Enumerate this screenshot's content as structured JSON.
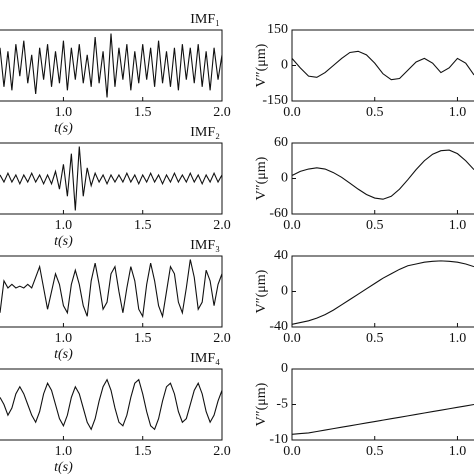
{
  "chart_data": [
    {
      "type": "line",
      "title": "IMF₁",
      "xlabel": "t(s)",
      "color": "#111",
      "x": [
        0.6,
        0.625,
        0.65,
        0.675,
        0.7,
        0.725,
        0.75,
        0.775,
        0.8,
        0.825,
        0.85,
        0.875,
        0.9,
        0.925,
        0.95,
        0.975,
        1.0,
        1.025,
        1.05,
        1.075,
        1.1,
        1.125,
        1.15,
        1.175,
        1.2,
        1.225,
        1.25,
        1.275,
        1.3,
        1.325,
        1.35,
        1.375,
        1.4,
        1.425,
        1.45,
        1.475,
        1.5,
        1.525,
        1.55,
        1.575,
        1.6,
        1.625,
        1.65,
        1.675,
        1.7,
        1.725,
        1.75,
        1.775,
        1.8,
        1.825,
        1.85,
        1.875,
        1.9,
        1.925,
        1.95,
        1.975,
        2.0
      ],
      "values": [
        0.5,
        -0.6,
        0.4,
        -0.7,
        0.6,
        -0.3,
        0.7,
        -0.5,
        0.3,
        -0.8,
        0.5,
        -0.4,
        0.6,
        -0.6,
        0.4,
        -0.5,
        0.7,
        -0.7,
        0.5,
        -0.4,
        0.6,
        -0.5,
        0.3,
        -0.6,
        0.8,
        -0.5,
        0.4,
        -0.9,
        0.9,
        -0.6,
        0.5,
        -0.4,
        0.6,
        -0.7,
        0.4,
        -0.5,
        0.6,
        -0.4,
        0.5,
        -0.6,
        0.7,
        -0.5,
        0.4,
        -0.6,
        0.5,
        -0.7,
        0.6,
        -0.4,
        0.5,
        -0.5,
        0.6,
        -0.6,
        0.4,
        -0.7,
        0.5,
        -0.4,
        0.3
      ],
      "xlim": [
        0.6,
        2.0
      ],
      "ylim": [
        -1,
        1
      ],
      "xticks": [
        {
          "value": 1,
          "label": "1.0"
        },
        1.5,
        {
          "value": 2,
          "label": "2.0"
        }
      ]
    },
    {
      "type": "line",
      "ylabel": "V″(μm)",
      "color": "#111",
      "x": [
        0,
        0.05,
        0.1,
        0.15,
        0.2,
        0.25,
        0.3,
        0.35,
        0.4,
        0.45,
        0.5,
        0.55,
        0.6,
        0.65,
        0.7,
        0.75,
        0.8,
        0.85,
        0.9,
        0.95,
        1.0,
        1.05,
        1.1
      ],
      "values": [
        30,
        -10,
        -45,
        -50,
        -30,
        0,
        30,
        55,
        60,
        45,
        10,
        -35,
        -60,
        -55,
        -20,
        15,
        30,
        10,
        -30,
        -10,
        30,
        10,
        -40
      ],
      "xlim": [
        0,
        1.1
      ],
      "ylim": [
        -150,
        150
      ],
      "yticks": [
        -150,
        0,
        150
      ],
      "xticks": [
        {
          "value": 0,
          "label": "0.0"
        },
        0.5,
        {
          "value": 1,
          "label": "1.0"
        }
      ]
    },
    {
      "type": "line",
      "title": "IMF₂",
      "xlabel": "t(s)",
      "color": "#111",
      "x": [
        0.6,
        0.625,
        0.65,
        0.675,
        0.7,
        0.725,
        0.75,
        0.775,
        0.8,
        0.825,
        0.85,
        0.875,
        0.9,
        0.925,
        0.95,
        0.975,
        1.0,
        1.025,
        1.05,
        1.075,
        1.1,
        1.125,
        1.15,
        1.175,
        1.2,
        1.225,
        1.25,
        1.275,
        1.3,
        1.325,
        1.35,
        1.375,
        1.4,
        1.425,
        1.45,
        1.475,
        1.5,
        1.525,
        1.55,
        1.575,
        1.6,
        1.625,
        1.65,
        1.675,
        1.7,
        1.725,
        1.75,
        1.775,
        1.8,
        1.825,
        1.85,
        1.875,
        1.9,
        1.925,
        1.95,
        1.975,
        2.0
      ],
      "values": [
        0.1,
        -0.1,
        0.15,
        -0.1,
        0.1,
        -0.15,
        0.1,
        -0.1,
        0.15,
        -0.1,
        0.1,
        -0.15,
        0.1,
        -0.15,
        0.2,
        -0.3,
        0.4,
        -0.5,
        0.7,
        -0.9,
        0.9,
        -0.5,
        0.3,
        -0.2,
        0.15,
        -0.1,
        0.1,
        -0.15,
        0.1,
        -0.1,
        0.1,
        -0.1,
        0.15,
        -0.1,
        0.1,
        -0.15,
        0.1,
        -0.1,
        0.15,
        -0.1,
        0.1,
        -0.15,
        0.1,
        -0.1,
        0.15,
        -0.1,
        0.1,
        -0.1,
        0.15,
        -0.1,
        0.1,
        -0.15,
        0.1,
        -0.1,
        0.15,
        -0.1,
        0.1
      ],
      "xlim": [
        0.6,
        2.0
      ],
      "ylim": [
        -1,
        1
      ],
      "xticks": [
        {
          "value": 1,
          "label": "1.0"
        },
        1.5,
        {
          "value": 2,
          "label": "2.0"
        }
      ]
    },
    {
      "type": "line",
      "ylabel": "V″(μm)",
      "color": "#111",
      "x": [
        0,
        0.05,
        0.1,
        0.15,
        0.2,
        0.25,
        0.3,
        0.35,
        0.4,
        0.45,
        0.5,
        0.55,
        0.6,
        0.65,
        0.7,
        0.75,
        0.8,
        0.85,
        0.9,
        0.95,
        1.0,
        1.05,
        1.1
      ],
      "values": [
        5,
        12,
        16,
        18,
        16,
        10,
        2,
        -8,
        -18,
        -27,
        -33,
        -35,
        -30,
        -18,
        -2,
        15,
        30,
        41,
        47,
        48,
        42,
        30,
        15
      ],
      "xlim": [
        0,
        1.1
      ],
      "ylim": [
        -60,
        60
      ],
      "yticks": [
        -60,
        0,
        60
      ],
      "xticks": [
        {
          "value": 0,
          "label": "0.0"
        },
        0.5,
        {
          "value": 1,
          "label": "1.0"
        }
      ]
    },
    {
      "type": "line",
      "title": "IMF₃",
      "xlabel": "t(s)",
      "color": "#111",
      "x": [
        0.6,
        0.625,
        0.65,
        0.675,
        0.7,
        0.725,
        0.75,
        0.775,
        0.8,
        0.825,
        0.85,
        0.875,
        0.9,
        0.925,
        0.95,
        0.975,
        1.0,
        1.025,
        1.05,
        1.075,
        1.1,
        1.125,
        1.15,
        1.175,
        1.2,
        1.225,
        1.25,
        1.275,
        1.3,
        1.325,
        1.35,
        1.375,
        1.4,
        1.425,
        1.45,
        1.475,
        1.5,
        1.525,
        1.55,
        1.575,
        1.6,
        1.625,
        1.65,
        1.675,
        1.7,
        1.725,
        1.75,
        1.775,
        1.8,
        1.825,
        1.85,
        1.875,
        1.9,
        1.925,
        1.95,
        1.975,
        2.0
      ],
      "values": [
        -0.6,
        0.3,
        0.1,
        0.2,
        0.1,
        0.15,
        0.1,
        0.2,
        0.1,
        0.4,
        0.7,
        0.1,
        -0.5,
        0.0,
        0.5,
        0.2,
        -0.4,
        -0.6,
        0.2,
        0.6,
        0.2,
        -0.4,
        -0.7,
        0.3,
        0.8,
        0.2,
        -0.5,
        -0.3,
        0.5,
        0.7,
        0.0,
        -0.6,
        0.1,
        0.7,
        0.3,
        -0.5,
        -0.7,
        0.2,
        0.8,
        0.3,
        -0.4,
        -0.7,
        0.0,
        0.7,
        0.5,
        -0.3,
        -0.6,
        0.1,
        0.9,
        0.4,
        -0.5,
        -0.3,
        0.6,
        0.3,
        -0.4,
        0.2,
        0.5
      ],
      "xlim": [
        0.6,
        2.0
      ],
      "ylim": [
        -1,
        1
      ],
      "xticks": [
        {
          "value": 1,
          "label": "1.0"
        },
        1.5,
        {
          "value": 2,
          "label": "2.0"
        }
      ]
    },
    {
      "type": "line",
      "ylabel": "V″(μm)",
      "color": "#111",
      "x": [
        0,
        0.05,
        0.1,
        0.15,
        0.2,
        0.25,
        0.3,
        0.35,
        0.4,
        0.45,
        0.5,
        0.55,
        0.6,
        0.65,
        0.7,
        0.75,
        0.8,
        0.85,
        0.9,
        0.95,
        1.0,
        1.05,
        1.1
      ],
      "values": [
        -37,
        -35,
        -33,
        -30,
        -26,
        -21,
        -15,
        -9,
        -3,
        3,
        9,
        15,
        20,
        25,
        29,
        31,
        33,
        34,
        34.5,
        34,
        33,
        31,
        28
      ],
      "xlim": [
        0,
        1.1
      ],
      "ylim": [
        -40,
        40
      ],
      "yticks": [
        -40,
        0,
        40
      ],
      "xticks": [
        {
          "value": 0,
          "label": "0.0"
        },
        0.5,
        {
          "value": 1,
          "label": "1.0"
        }
      ]
    },
    {
      "type": "line",
      "title": "IMF₄",
      "xlabel": "t(s)",
      "color": "#111",
      "x": [
        0.6,
        0.625,
        0.65,
        0.675,
        0.7,
        0.725,
        0.75,
        0.775,
        0.8,
        0.825,
        0.85,
        0.875,
        0.9,
        0.925,
        0.95,
        0.975,
        1.0,
        1.025,
        1.05,
        1.075,
        1.1,
        1.125,
        1.15,
        1.175,
        1.2,
        1.225,
        1.25,
        1.275,
        1.3,
        1.325,
        1.35,
        1.375,
        1.4,
        1.425,
        1.45,
        1.475,
        1.5,
        1.525,
        1.55,
        1.575,
        1.6,
        1.625,
        1.65,
        1.675,
        1.7,
        1.725,
        1.75,
        1.775,
        1.8,
        1.825,
        1.85,
        1.875,
        1.9,
        1.925,
        1.95,
        1.975,
        2.0
      ],
      "values": [
        0.2,
        0.0,
        -0.3,
        -0.1,
        0.3,
        0.5,
        0.3,
        0.0,
        -0.3,
        -0.5,
        -0.2,
        0.3,
        0.6,
        0.4,
        0.0,
        -0.4,
        -0.6,
        -0.3,
        0.2,
        0.5,
        0.3,
        -0.1,
        -0.5,
        -0.7,
        -0.4,
        0.1,
        0.5,
        0.7,
        0.4,
        -0.1,
        -0.5,
        -0.6,
        -0.3,
        0.2,
        0.6,
        0.7,
        0.3,
        -0.2,
        -0.6,
        -0.7,
        -0.4,
        0.1,
        0.5,
        0.6,
        0.3,
        -0.2,
        -0.5,
        -0.4,
        0.0,
        0.4,
        0.6,
        0.3,
        -0.2,
        -0.5,
        -0.3,
        0.1,
        0.4
      ],
      "xlim": [
        0.6,
        2.0
      ],
      "ylim": [
        -1,
        1
      ],
      "xticks": [
        {
          "value": 1,
          "label": "1.0"
        },
        1.5,
        {
          "value": 2,
          "label": "2.0"
        }
      ]
    },
    {
      "type": "line",
      "ylabel": "V″(μm)",
      "color": "#111",
      "x": [
        0,
        0.05,
        0.1,
        0.15,
        0.2,
        0.25,
        0.3,
        0.35,
        0.4,
        0.45,
        0.5,
        0.55,
        0.6,
        0.65,
        0.7,
        0.75,
        0.8,
        0.85,
        0.9,
        0.95,
        1.0,
        1.05,
        1.1
      ],
      "values": [
        -9.2,
        -9.1,
        -9.0,
        -8.8,
        -8.6,
        -8.4,
        -8.2,
        -8.0,
        -7.8,
        -7.6,
        -7.4,
        -7.2,
        -7.0,
        -6.8,
        -6.6,
        -6.4,
        -6.2,
        -6.0,
        -5.8,
        -5.6,
        -5.4,
        -5.2,
        -5.0
      ],
      "xlim": [
        0,
        1.1
      ],
      "ylim": [
        -10,
        0
      ],
      "yticks": [
        -10,
        -5,
        0
      ],
      "xticks": [
        {
          "value": 0,
          "label": "0.0"
        },
        0.5,
        {
          "value": 1,
          "label": "1.0"
        }
      ]
    }
  ]
}
